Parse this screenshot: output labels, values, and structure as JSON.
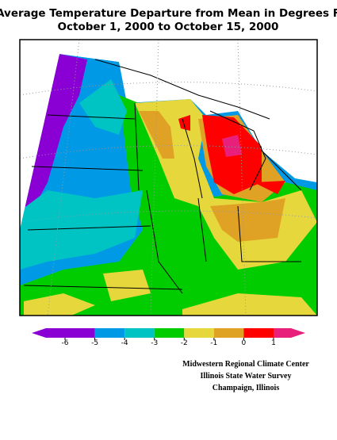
{
  "title": [
    "Average Temperature Departure from Mean in Degrees F",
    "October 1, 2000 to October 15, 2000"
  ],
  "legend": {
    "ticks": [
      -6,
      -5,
      -4,
      -3,
      -2,
      -1,
      0,
      1
    ],
    "colors": [
      "#8a00d4",
      "#0099e6",
      "#00c3c3",
      "#00cc00",
      "#e6d83c",
      "#e0a224",
      "#ff0000",
      "#e8207c"
    ]
  },
  "credits": [
    "Midwestern Regional Climate Center",
    "Illinois State Water Survey",
    "Champaign, Illinois"
  ]
}
